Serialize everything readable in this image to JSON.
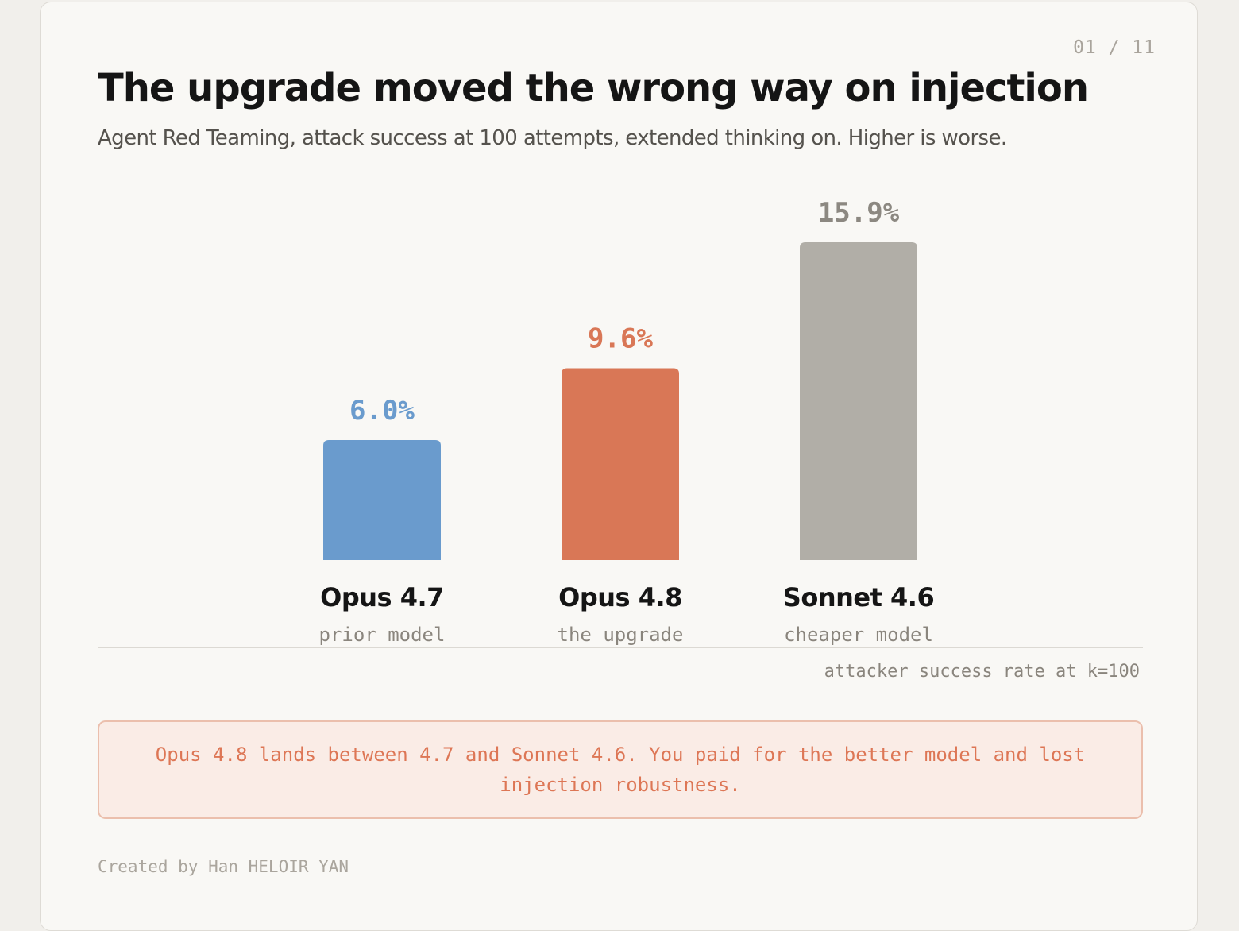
{
  "page_counter": "01 / 11",
  "title": "The upgrade moved the wrong way on injection",
  "subtitle": "Agent Red Teaming, attack success at 100 attempts, extended thinking on. Higher is worse.",
  "chart_data": {
    "type": "bar",
    "categories": [
      "Opus 4.7",
      "Opus 4.8",
      "Sonnet 4.6"
    ],
    "category_sublabels": [
      "prior model",
      "the upgrade",
      "cheaper model"
    ],
    "values": [
      6.0,
      9.6,
      15.9
    ],
    "value_labels": [
      "6.0%",
      "9.6%",
      "15.9%"
    ],
    "unit": "%",
    "bar_colors": [
      "#6a9bcd",
      "#d97756",
      "#b1aea7"
    ],
    "label_colors": [
      "#6a9bcd",
      "#d97756",
      "#8c8881"
    ],
    "xlabel": "attacker success rate at k=100",
    "ylabel": "",
    "ylim": [
      0,
      15.9
    ],
    "grid": false,
    "legend": "none"
  },
  "callout": "Opus 4.8 lands between 4.7 and Sonnet 4.6. You paid for the better model and lost injection robustness.",
  "footer": "Created by Han HELOIR YAN"
}
